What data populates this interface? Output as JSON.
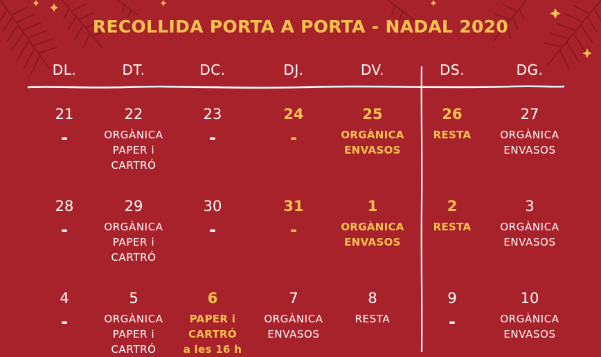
{
  "title": "RECOLLIDA PORTA A PORTA - NADAL 2020",
  "day_names": [
    "DL.",
    "DT.",
    "DC.",
    "DJ.",
    "DV.",
    "DS.",
    "DG."
  ],
  "weeks": [
    {
      "days": [
        {
          "num": "21",
          "text": "-",
          "highlight": false
        },
        {
          "num": "22",
          "text": "ORGÀNICA\nPAPER i\nCARTRÓ",
          "highlight": false
        },
        {
          "num": "23",
          "text": "-",
          "highlight": false
        },
        {
          "num": "24",
          "text": "-",
          "highlight": true
        },
        {
          "num": "25",
          "text": "ORGÀNICA\nENVASOS",
          "highlight": true
        },
        {
          "num": "26",
          "text": "RESTA",
          "highlight": true
        },
        {
          "num": "27",
          "text": "ORGÀNICA\nENVASOS",
          "highlight": false
        }
      ]
    },
    {
      "days": [
        {
          "num": "28",
          "text": "-",
          "highlight": false
        },
        {
          "num": "29",
          "text": "ORGÀNICA\nPAPER i\nCARTRÓ",
          "highlight": false
        },
        {
          "num": "30",
          "text": "-",
          "highlight": false
        },
        {
          "num": "31",
          "text": "-",
          "highlight": true
        },
        {
          "num": "1",
          "text": "ORGÀNICA\nENVASOS",
          "highlight": true
        },
        {
          "num": "2",
          "text": "RESTA",
          "highlight": true
        },
        {
          "num": "3",
          "text": "ORGÀNICA\nENVASOS",
          "highlight": false
        }
      ]
    },
    {
      "days": [
        {
          "num": "4",
          "text": "-",
          "highlight": false
        },
        {
          "num": "5",
          "text": "ORGÀNICA\nPAPER i\nCARTRÓ",
          "highlight": false
        },
        {
          "num": "6",
          "text": "PAPER i\nCARTRÓ\na les 16 h",
          "highlight": true
        },
        {
          "num": "7",
          "text": "ORGÀNICA\nENVASOS",
          "highlight": false
        },
        {
          "num": "8",
          "text": "RESTA",
          "highlight": false
        },
        {
          "num": "9",
          "text": "-",
          "highlight": false
        },
        {
          "num": "10",
          "text": "ORGÀNICA\nENVASOS",
          "highlight": false
        }
      ]
    }
  ],
  "colors": {
    "background": "#a8222b",
    "highlight": "#f6c24f",
    "text": "#ffffff"
  }
}
